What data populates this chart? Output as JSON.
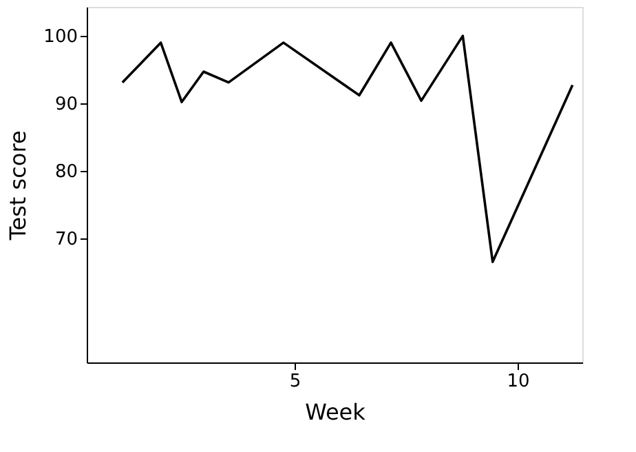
{
  "chart_data": {
    "type": "line",
    "xlabel": "Week",
    "ylabel": "Test score",
    "x": [
      1.14,
      2.0,
      2.47,
      2.96,
      3.52,
      4.75,
      6.45,
      7.16,
      7.84,
      8.77,
      9.44,
      11.23
    ],
    "values": [
      93.1,
      99,
      90.2,
      94.7,
      93.1,
      99,
      91.2,
      99,
      90.4,
      100,
      66.5,
      92.7
    ],
    "color": "#000000",
    "xlim": [
      0.34,
      11.45
    ],
    "ylim": [
      51.6,
      104.3
    ],
    "xticks": [
      5,
      10
    ],
    "yticks": [
      70,
      80,
      90,
      100
    ],
    "grid": false,
    "marker": "none",
    "line_style": "solid"
  }
}
